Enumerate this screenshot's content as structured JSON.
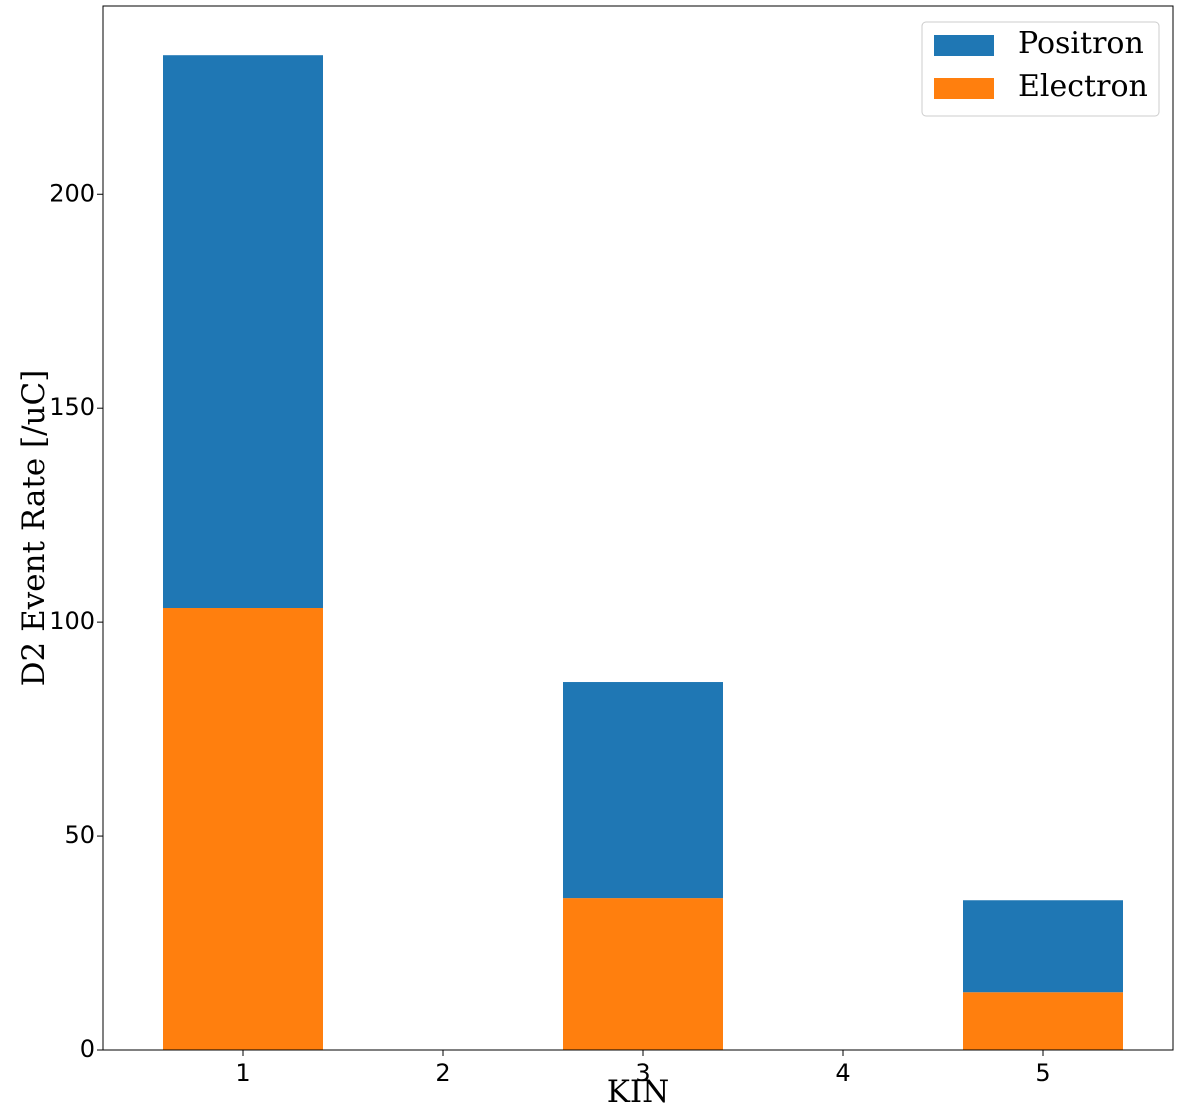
{
  "chart_data": {
    "type": "bar",
    "stacked": true,
    "title": "",
    "xlabel": "KIN",
    "ylabel": "D2 Event Rate [/uC]",
    "categories": [
      "1",
      "2",
      "3",
      "4",
      "5"
    ],
    "x": [
      1,
      2,
      3,
      4,
      5
    ],
    "series": [
      {
        "name": "Electron",
        "color": "#ff7f0e",
        "values": [
          103.3,
          0,
          35.5,
          0,
          13.5
        ]
      },
      {
        "name": "Positron",
        "color": "#1f77b4",
        "values": [
          129.2,
          0,
          50.5,
          0,
          21.5
        ]
      }
    ],
    "totals": [
      232.5,
      0,
      86.0,
      0,
      35.0
    ],
    "xlim": [
      0.3,
      5.65
    ],
    "ylim": [
      0,
      244
    ],
    "yticks": [
      0,
      50,
      100,
      150,
      200
    ],
    "grid": false,
    "legend": {
      "position": "top-right",
      "order": [
        "Positron",
        "Electron"
      ]
    }
  }
}
